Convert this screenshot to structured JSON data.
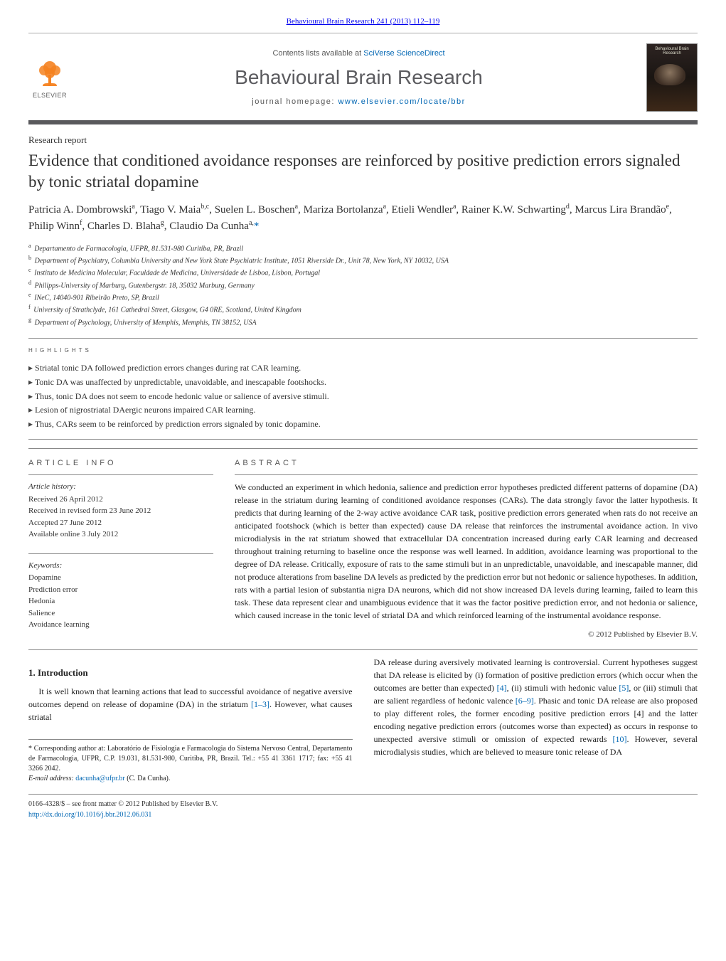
{
  "journal_ref": "Behavioural Brain Research 241 (2013) 112–119",
  "header": {
    "contents_prefix": "Contents lists available at ",
    "contents_link": "SciVerse ScienceDirect",
    "journal_title": "Behavioural Brain Research",
    "homepage_prefix": "journal homepage: ",
    "homepage_link": "www.elsevier.com/locate/bbr",
    "publisher": "ELSEVIER",
    "cover_label": "Behavioural Brain Research"
  },
  "article": {
    "type": "Research report",
    "title": "Evidence that conditioned avoidance responses are reinforced by positive prediction errors signaled by tonic striatal dopamine",
    "authors_html": "Patricia A. Dombrowski<sup>a</sup>, Tiago V. Maia<sup>b,c</sup>, Suelen L. Boschen<sup>a</sup>, Mariza Bortolanza<sup>a</sup>, Etieli Wendler<sup>a</sup>, Rainer K.W. Schwarting<sup>d</sup>, Marcus Lira Brandão<sup>e</sup>, Philip Winn<sup>f</sup>, Charles D. Blaha<sup>g</sup>, Claudio Da Cunha<sup>a,</sup><a href=\"#\">*</a>",
    "affiliations": [
      {
        "sup": "a",
        "text": "Departamento de Farmacologia, UFPR, 81.531-980 Curitiba, PR, Brazil"
      },
      {
        "sup": "b",
        "text": "Department of Psychiatry, Columbia University and New York State Psychiatric Institute, 1051 Riverside Dr., Unit 78, New York, NY 10032, USA"
      },
      {
        "sup": "c",
        "text": "Instituto de Medicina Molecular, Faculdade de Medicina, Universidade de Lisboa, Lisbon, Portugal"
      },
      {
        "sup": "d",
        "text": "Philipps-University of Marburg, Gutenbergstr. 18, 35032 Marburg, Germany"
      },
      {
        "sup": "e",
        "text": "INeC, 14040-901 Ribeirão Preto, SP, Brazil"
      },
      {
        "sup": "f",
        "text": "University of Strathclyde, 161 Cathedral Street, Glasgow, G4 0RE, Scotland, United Kingdom"
      },
      {
        "sup": "g",
        "text": "Department of Psychology, University of Memphis, Memphis, TN 38152, USA"
      }
    ]
  },
  "highlights": {
    "heading": "HIGHLIGHTS",
    "items": [
      "Striatal tonic DA followed prediction errors changes during rat CAR learning.",
      "Tonic DA was unaffected by unpredictable, unavoidable, and inescapable footshocks.",
      "Thus, tonic DA does not seem to encode hedonic value or salience of aversive stimuli.",
      "Lesion of nigrostriatal DAergic neurons impaired CAR learning.",
      "Thus, CARs seem to be reinforced by prediction errors signaled by tonic dopamine."
    ]
  },
  "info": {
    "heading": "ARTICLE INFO",
    "history_label": "Article history:",
    "history": [
      "Received 26 April 2012",
      "Received in revised form 23 June 2012",
      "Accepted 27 June 2012",
      "Available online 3 July 2012"
    ],
    "keywords_label": "Keywords:",
    "keywords": [
      "Dopamine",
      "Prediction error",
      "Hedonia",
      "Salience",
      "Avoidance learning"
    ]
  },
  "abstract": {
    "heading": "ABSTRACT",
    "text": "We conducted an experiment in which hedonia, salience and prediction error hypotheses predicted different patterns of dopamine (DA) release in the striatum during learning of conditioned avoidance responses (CARs). The data strongly favor the latter hypothesis. It predicts that during learning of the 2-way active avoidance CAR task, positive prediction errors generated when rats do not receive an anticipated footshock (which is better than expected) cause DA release that reinforces the instrumental avoidance action. In vivo microdialysis in the rat striatum showed that extracellular DA concentration increased during early CAR learning and decreased throughout training returning to baseline once the response was well learned. In addition, avoidance learning was proportional to the degree of DA release. Critically, exposure of rats to the same stimuli but in an unpredictable, unavoidable, and inescapable manner, did not produce alterations from baseline DA levels as predicted by the prediction error but not hedonic or salience hypotheses. In addition, rats with a partial lesion of substantia nigra DA neurons, which did not show increased DA levels during learning, failed to learn this task. These data represent clear and unambiguous evidence that it was the factor positive prediction error, and not hedonia or salience, which caused increase in the tonic level of striatal DA and which reinforced learning of the instrumental avoidance response.",
    "copyright": "© 2012 Published by Elsevier B.V."
  },
  "intro": {
    "heading": "1.  Introduction",
    "para1_pre": "It is well known that learning actions that lead to successful avoidance of negative aversive outcomes depend on release of dopamine (DA) in the striatum ",
    "para1_ref": "[1–3]",
    "para1_post": ". However, what causes striatal",
    "para2": "DA release during aversively motivated learning is controversial. Current hypotheses suggest that DA release is elicited by (i) formation of positive prediction errors (which occur when the outcomes are better than expected) [4], (ii) stimuli with hedonic value [5], or (iii) stimuli that are salient regardless of hedonic valence [6–9]. Phasic and tonic DA release are also proposed to play different roles, the former encoding positive prediction errors [4] and the latter encoding negative prediction errors (outcomes worse than expected) as occurs in response to unexpected aversive stimuli or omission of expected rewards [10]. However, several microdialysis studies, which are believed to measure tonic release of DA",
    "refs_inline": {
      "r4": "[4]",
      "r5": "[5]",
      "r69": "[6–9]",
      "r10": "[10]"
    }
  },
  "footnote": {
    "corresponding": "* Corresponding author at: Laboratório de Fisiologia e Farmacologia do Sistema Nervoso Central, Departamento de Farmacologia, UFPR, C.P. 19.031, 81.531-980, Curitiba, PR, Brazil. Tel.: +55 41 3361 1717; fax: +55 41 3266 2042.",
    "email_label": "E-mail address: ",
    "email": "dacunha@ufpr.br",
    "email_suffix": " (C. Da Cunha)."
  },
  "footer": {
    "issn": "0166-4328/$ – see front matter © 2012 Published by Elsevier B.V.",
    "doi": "http://dx.doi.org/10.1016/j.bbr.2012.06.031"
  },
  "colors": {
    "link": "#0066b3",
    "rule": "#888888",
    "banner_border": "#59595c",
    "elsevier_orange": "#f58220",
    "text": "#222222"
  }
}
